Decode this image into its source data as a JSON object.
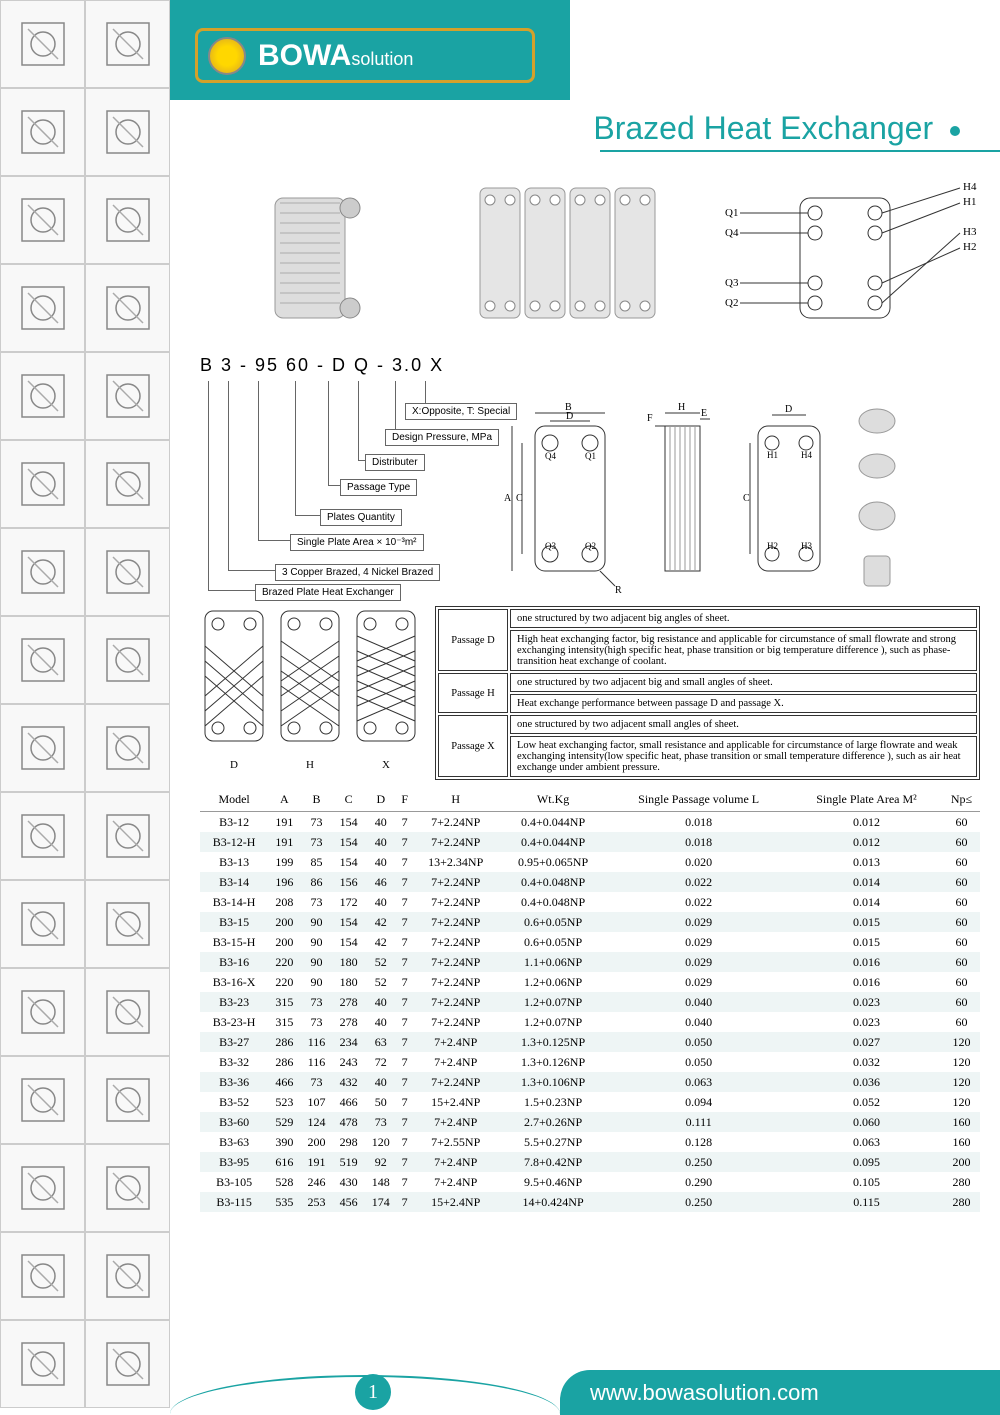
{
  "brand": {
    "name": "BOWA",
    "suffix": "solution"
  },
  "page_title": "Brazed Heat Exchanger",
  "model_code": "B  3 - 95  60 - D  Q - 3.0  X",
  "code_labels": [
    "X:Opposite, T: Special",
    "Design Pressure, MPa",
    "Distributer",
    "Passage Type",
    "Plates Quantity",
    "Single Plate Area  × 10⁻³m²",
    "3 Copper Brazed, 4 Nickel Brazed",
    "Brazed Plate Heat Exchanger"
  ],
  "port_labels": {
    "q1": "Q1",
    "q2": "Q2",
    "q3": "Q3",
    "q4": "Q4",
    "h1": "H1",
    "h2": "H2",
    "h3": "H3",
    "h4": "H4"
  },
  "dim_labels": {
    "a": "A",
    "b": "B",
    "c": "C",
    "d": "D",
    "e": "E",
    "f": "F",
    "h": "H",
    "r": "R"
  },
  "passage_types": {
    "D": {
      "name": "Passage D",
      "line1": "one structured by two adjacent big angles of sheet.",
      "line2": "High heat exchanging factor, big resistance and applicable for circumstance of small flowrate and strong exchanging intensity(high specific heat, phase transition or big temperature difference ), such as phase-transition heat exchange of coolant."
    },
    "H": {
      "name": "Passage H",
      "line1": "one structured by two adjacent big and small angles of sheet.",
      "line2": "Heat exchange performance between passage D and passage X."
    },
    "X": {
      "name": "Passage X",
      "line1": "one structured by two adjacent small angles of sheet.",
      "line2": "Low heat exchanging factor, small resistance and applicable for circumstance of large flowrate and weak exchanging intensity(low specific heat, phase transition or small temperature difference ), such as air heat exchange under ambient pressure."
    }
  },
  "passage_fig_labels": [
    "D",
    "H",
    "X"
  ],
  "table": {
    "headers": [
      "Model",
      "A",
      "B",
      "C",
      "D",
      "F",
      "H",
      "Wt.Kg",
      "Single Passage volume L",
      "Single Plate Area M²",
      "Np≤"
    ],
    "rows": [
      [
        "B3-12",
        "191",
        "73",
        "154",
        "40",
        "7",
        "7+2.24NP",
        "0.4+0.044NP",
        "0.018",
        "0.012",
        "60"
      ],
      [
        "B3-12-H",
        "191",
        "73",
        "154",
        "40",
        "7",
        "7+2.24NP",
        "0.4+0.044NP",
        "0.018",
        "0.012",
        "60"
      ],
      [
        "B3-13",
        "199",
        "85",
        "154",
        "40",
        "7",
        "13+2.34NP",
        "0.95+0.065NP",
        "0.020",
        "0.013",
        "60"
      ],
      [
        "B3-14",
        "196",
        "86",
        "156",
        "46",
        "7",
        "7+2.24NP",
        "0.4+0.048NP",
        "0.022",
        "0.014",
        "60"
      ],
      [
        "B3-14-H",
        "208",
        "73",
        "172",
        "40",
        "7",
        "7+2.24NP",
        "0.4+0.048NP",
        "0.022",
        "0.014",
        "60"
      ],
      [
        "B3-15",
        "200",
        "90",
        "154",
        "42",
        "7",
        "7+2.24NP",
        "0.6+0.05NP",
        "0.029",
        "0.015",
        "60"
      ],
      [
        "B3-15-H",
        "200",
        "90",
        "154",
        "42",
        "7",
        "7+2.24NP",
        "0.6+0.05NP",
        "0.029",
        "0.015",
        "60"
      ],
      [
        "B3-16",
        "220",
        "90",
        "180",
        "52",
        "7",
        "7+2.24NP",
        "1.1+0.06NP",
        "0.029",
        "0.016",
        "60"
      ],
      [
        "B3-16-X",
        "220",
        "90",
        "180",
        "52",
        "7",
        "7+2.24NP",
        "1.2+0.06NP",
        "0.029",
        "0.016",
        "60"
      ],
      [
        "B3-23",
        "315",
        "73",
        "278",
        "40",
        "7",
        "7+2.24NP",
        "1.2+0.07NP",
        "0.040",
        "0.023",
        "60"
      ],
      [
        "B3-23-H",
        "315",
        "73",
        "278",
        "40",
        "7",
        "7+2.24NP",
        "1.2+0.07NP",
        "0.040",
        "0.023",
        "60"
      ],
      [
        "B3-27",
        "286",
        "116",
        "234",
        "63",
        "7",
        "7+2.4NP",
        "1.3+0.125NP",
        "0.050",
        "0.027",
        "120"
      ],
      [
        "B3-32",
        "286",
        "116",
        "243",
        "72",
        "7",
        "7+2.4NP",
        "1.3+0.126NP",
        "0.050",
        "0.032",
        "120"
      ],
      [
        "B3-36",
        "466",
        "73",
        "432",
        "40",
        "7",
        "7+2.24NP",
        "1.3+0.106NP",
        "0.063",
        "0.036",
        "120"
      ],
      [
        "B3-52",
        "523",
        "107",
        "466",
        "50",
        "7",
        "15+2.4NP",
        "1.5+0.23NP",
        "0.094",
        "0.052",
        "120"
      ],
      [
        "B3-60",
        "529",
        "124",
        "478",
        "73",
        "7",
        "7+2.4NP",
        "2.7+0.26NP",
        "0.111",
        "0.060",
        "160"
      ],
      [
        "B3-63",
        "390",
        "200",
        "298",
        "120",
        "7",
        "7+2.55NP",
        "5.5+0.27NP",
        "0.128",
        "0.063",
        "160"
      ],
      [
        "B3-95",
        "616",
        "191",
        "519",
        "92",
        "7",
        "7+2.4NP",
        "7.8+0.42NP",
        "0.250",
        "0.095",
        "200"
      ],
      [
        "B3-105",
        "528",
        "246",
        "430",
        "148",
        "7",
        "7+2.4NP",
        "9.5+0.46NP",
        "0.290",
        "0.105",
        "280"
      ],
      [
        "B3-115",
        "535",
        "253",
        "456",
        "174",
        "7",
        "15+2.4NP",
        "14+0.424NP",
        "0.250",
        "0.115",
        "280"
      ]
    ],
    "alt_row_color": "#eef5f5"
  },
  "footer": {
    "url": "www.bowasolution.com",
    "page": "1"
  },
  "colors": {
    "brand": "#1aa3a3",
    "gold": "#d4a12a",
    "text": "#333333"
  }
}
